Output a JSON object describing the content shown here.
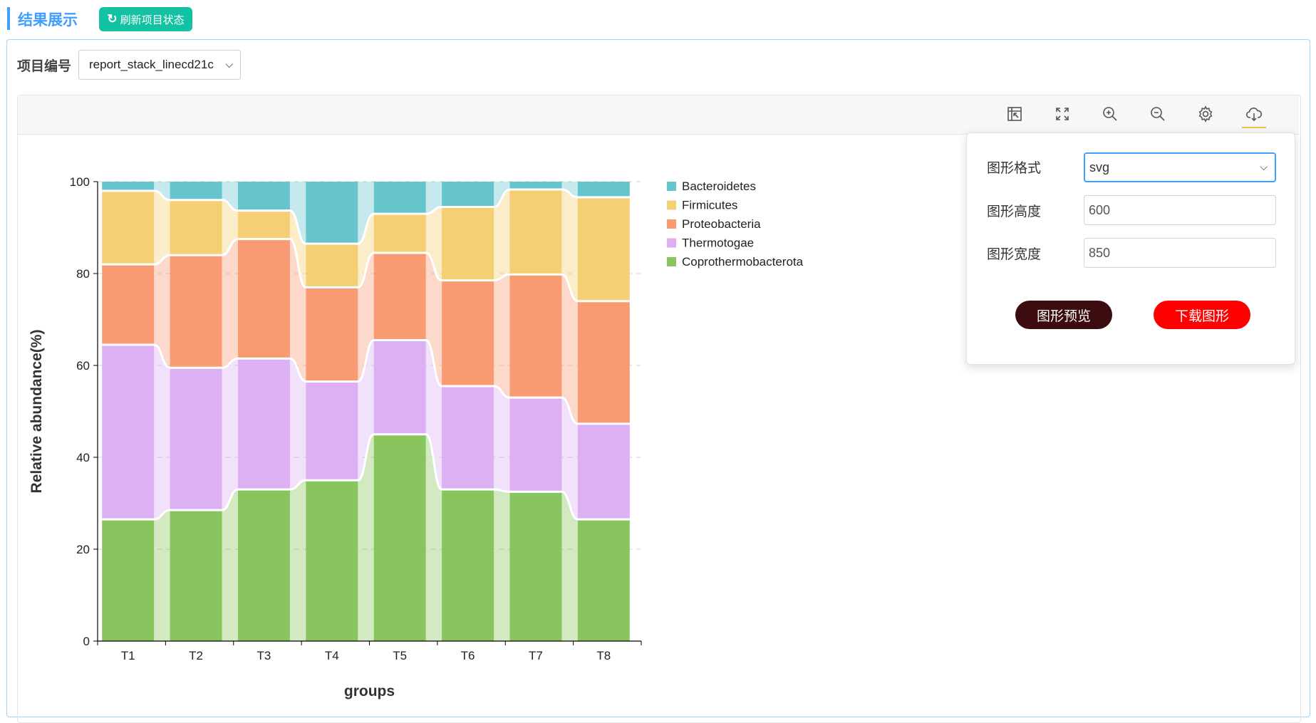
{
  "header": {
    "title": "结果展示",
    "refresh_label": "刷新项目状态",
    "refresh_icon": "refresh-icon"
  },
  "project": {
    "label": "项目编号",
    "selected": "report_stack_linecd21c"
  },
  "toolbar": {
    "icons": [
      "restore-icon",
      "fullscreen-icon",
      "zoom-in-icon",
      "zoom-out-icon",
      "gear-icon",
      "cloud-download-icon"
    ],
    "underline_color": "#f5c242"
  },
  "export_popover": {
    "format_label": "图形格式",
    "format_value": "svg",
    "height_label": "图形高度",
    "height_value": "600",
    "width_label": "图形宽度",
    "width_value": "850",
    "preview_label": "图形预览",
    "download_label": "下载图形",
    "preview_color": "#3d0c10",
    "download_color": "#ff0000"
  },
  "chart_data": {
    "type": "bar",
    "stacked": true,
    "connected_bands": true,
    "xlabel": "groups",
    "ylabel": "Relative abundance(%)",
    "ylim": [
      0,
      100
    ],
    "yticks": [
      0,
      20,
      40,
      60,
      80,
      100
    ],
    "grid": "horizontal dashed",
    "legend_position": "top-right",
    "categories": [
      "T1",
      "T2",
      "T3",
      "T4",
      "T5",
      "T6",
      "T7",
      "T8"
    ],
    "series": [
      {
        "name": "Coprothermobacterota",
        "color": "#89c55f",
        "values": [
          26.5,
          28.5,
          33.0,
          35.0,
          45.0,
          33.0,
          32.5,
          26.5
        ]
      },
      {
        "name": "Thermotogae",
        "color": "#dcb0f2",
        "values": [
          38.0,
          31.0,
          28.5,
          21.5,
          20.5,
          22.5,
          20.5,
          20.8
        ]
      },
      {
        "name": "Proteobacteria",
        "color": "#f89b73",
        "values": [
          17.5,
          24.5,
          26.0,
          20.5,
          19.0,
          23.0,
          26.8,
          26.7
        ]
      },
      {
        "name": "Firmicutes",
        "color": "#f5cf74",
        "values": [
          16.0,
          12.0,
          6.2,
          9.5,
          8.5,
          16.0,
          18.5,
          22.6
        ]
      },
      {
        "name": "Bacteroidetes",
        "color": "#66c5cc",
        "values": [
          2.0,
          4.0,
          6.3,
          13.5,
          7.0,
          5.5,
          1.7,
          3.4
        ]
      }
    ],
    "legend_order": [
      "Bacteroidetes",
      "Firmicutes",
      "Proteobacteria",
      "Thermotogae",
      "Coprothermobacterota"
    ]
  }
}
